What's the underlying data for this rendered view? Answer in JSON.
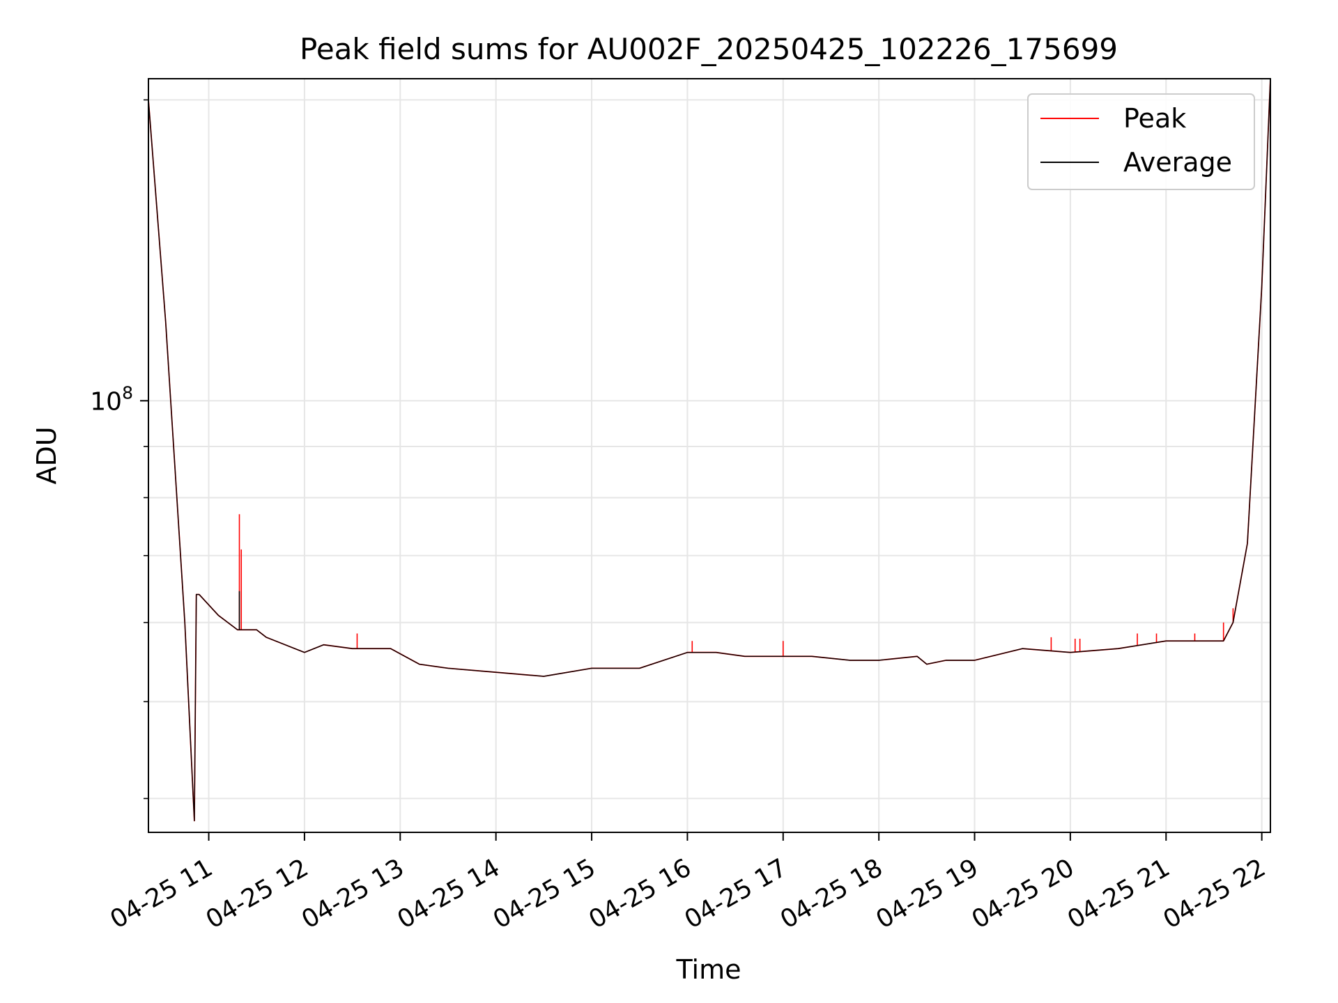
{
  "chart_data": {
    "type": "line",
    "title": "Peak field sums for AU002F_20250425_102226_175699",
    "xlabel": "Time",
    "ylabel": "ADU",
    "yscale": "log",
    "x_tick_labels": [
      "04-25 11",
      "04-25 12",
      "04-25 13",
      "04-25 14",
      "04-25 15",
      "04-25 16",
      "04-25 17",
      "04-25 18",
      "04-25 19",
      "04-25 20",
      "04-25 21",
      "04-25 22"
    ],
    "x_ticks_hours": [
      11,
      12,
      13,
      14,
      15,
      16,
      17,
      18,
      19,
      20,
      21,
      22
    ],
    "xlim_hours": [
      10.37,
      22.09
    ],
    "y_tick_major": {
      "value": 100000000,
      "base": "10",
      "exponent": "8"
    },
    "y_minor_ticks": [
      40000000,
      50000000,
      60000000,
      70000000,
      80000000,
      90000000,
      200000000
    ],
    "ylim": [
      37000000,
      210000000
    ],
    "grid": true,
    "legend_position": "upper right",
    "legend": [
      {
        "label": "Peak",
        "color": "#ff0000"
      },
      {
        "label": "Average",
        "color": "#000000"
      }
    ],
    "series": [
      {
        "name": "Peak",
        "color": "#ff0000",
        "x": [
          10.37,
          10.55,
          10.75,
          10.85,
          10.87,
          10.9,
          11.1,
          11.3,
          11.5,
          11.6,
          12.0,
          12.2,
          12.5,
          12.8,
          12.9,
          13.2,
          13.5,
          14.0,
          14.5,
          15.0,
          15.5,
          16.0,
          16.3,
          16.6,
          17.0,
          17.3,
          17.7,
          18.0,
          18.4,
          18.5,
          18.7,
          19.0,
          19.5,
          20.0,
          20.5,
          21.0,
          21.4,
          21.6,
          21.7,
          21.85,
          22.0,
          22.09
        ],
        "y": [
          200000000,
          120000000,
          60000000,
          38000000,
          64000000,
          64000000,
          61000000,
          59000000,
          59000000,
          58000000,
          56000000,
          57000000,
          56500000,
          56500000,
          56500000,
          54500000,
          54000000,
          53500000,
          53000000,
          54000000,
          54000000,
          56000000,
          56000000,
          55500000,
          55500000,
          55500000,
          55000000,
          55000000,
          55500000,
          54500000,
          55000000,
          55000000,
          56500000,
          56000000,
          56500000,
          57500000,
          57500000,
          57500000,
          60000000,
          72000000,
          130000000,
          210000000
        ],
        "spikes": [
          {
            "x": 11.32,
            "y": 77000000
          },
          {
            "x": 11.34,
            "y": 71000000
          },
          {
            "x": 12.55,
            "y": 58500000
          },
          {
            "x": 16.05,
            "y": 57500000
          },
          {
            "x": 17.0,
            "y": 57500000
          },
          {
            "x": 19.8,
            "y": 58000000
          },
          {
            "x": 20.05,
            "y": 57800000
          },
          {
            "x": 20.1,
            "y": 57800000
          },
          {
            "x": 20.7,
            "y": 58500000
          },
          {
            "x": 20.9,
            "y": 58500000
          },
          {
            "x": 21.3,
            "y": 58500000
          },
          {
            "x": 21.6,
            "y": 60000000
          },
          {
            "x": 21.7,
            "y": 62000000
          }
        ]
      },
      {
        "name": "Average",
        "color": "#000000",
        "x": [
          10.37,
          10.55,
          10.75,
          10.85,
          10.87,
          10.9,
          11.1,
          11.3,
          11.5,
          11.6,
          12.0,
          12.2,
          12.5,
          12.8,
          12.9,
          13.2,
          13.5,
          14.0,
          14.5,
          15.0,
          15.5,
          16.0,
          16.3,
          16.6,
          17.0,
          17.3,
          17.7,
          18.0,
          18.4,
          18.5,
          18.7,
          19.0,
          19.5,
          20.0,
          20.5,
          21.0,
          21.4,
          21.6,
          21.7,
          21.85,
          22.0,
          22.09
        ],
        "y": [
          200000000,
          120000000,
          60000000,
          38000000,
          64000000,
          64000000,
          61000000,
          59000000,
          59000000,
          58000000,
          56000000,
          57000000,
          56500000,
          56500000,
          56500000,
          54500000,
          54000000,
          53500000,
          53000000,
          54000000,
          54000000,
          56000000,
          56000000,
          55500000,
          55500000,
          55500000,
          55000000,
          55000000,
          55500000,
          54500000,
          55000000,
          55000000,
          56500000,
          56000000,
          56500000,
          57500000,
          57500000,
          57500000,
          60000000,
          72000000,
          130000000,
          210000000
        ],
        "spikes": [
          {
            "x": 11.32,
            "y": 64500000
          }
        ]
      }
    ]
  }
}
